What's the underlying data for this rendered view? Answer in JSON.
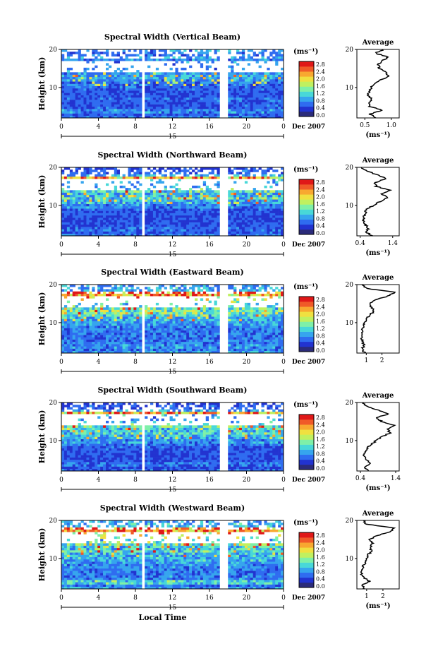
{
  "chart_data": {
    "type": "heatmap",
    "xlabel": "Local Time",
    "date_label": "15",
    "date_suffix": "Dec 2007",
    "x_ticks": [
      "0",
      "4",
      "8",
      "12",
      "16",
      "20",
      "0"
    ],
    "xlim": [
      0,
      24
    ],
    "ylabel": "Height (km)",
    "y_ticks": [
      "20",
      "10"
    ],
    "ylim": [
      2,
      20
    ],
    "colorbar": {
      "unit": "(ms⁻¹)",
      "ticks": [
        "2.8",
        "2.4",
        "2.0",
        "1.6",
        "1.2",
        "0.8",
        "0.4",
        "0.0"
      ],
      "range": [
        0,
        3.0
      ],
      "colors": [
        "#2b2b7a",
        "#2233d0",
        "#2f6cf0",
        "#36a5ee",
        "#48d8d8",
        "#7ef0a8",
        "#c0f060",
        "#f0e040",
        "#f8a830",
        "#f05a28",
        "#e01818"
      ]
    },
    "data_gaps_hours": [
      [
        8.7,
        9.0
      ],
      [
        17.1,
        18.0
      ]
    ],
    "panels": [
      {
        "title": "Spectral Width (Vertical Beam)",
        "avg_title": "Average",
        "avg_xlim": [
          0.35,
          1.15
        ],
        "avg_x_ticks": [
          {
            "label": "0.5",
            "value": 0.5
          },
          {
            "label": "1.0",
            "value": 1.0
          }
        ],
        "avg_xlabel": "(ms⁻¹)",
        "avg_profile": {
          "height_km": [
            2,
            3,
            4,
            5,
            6,
            7,
            8,
            9,
            10,
            11,
            12,
            13,
            14,
            15,
            16,
            17,
            18,
            19,
            20
          ],
          "value_ms": [
            0.72,
            0.6,
            0.82,
            0.6,
            0.58,
            0.62,
            0.55,
            0.58,
            0.62,
            0.7,
            0.8,
            0.95,
            0.9,
            0.78,
            0.75,
            0.82,
            0.95,
            0.7,
            0.85
          ]
        }
      },
      {
        "title": "Spectral Width (Northward Beam)",
        "avg_title": "Average",
        "avg_xlim": [
          0.3,
          1.6
        ],
        "avg_x_ticks": [
          {
            "label": "0.4",
            "value": 0.4
          },
          {
            "label": "1.4",
            "value": 1.4
          }
        ],
        "avg_xlabel": "(ms⁻¹)",
        "avg_profile": {
          "height_km": [
            2,
            3,
            4,
            5,
            6,
            7,
            8,
            9,
            10,
            11,
            12,
            13,
            14,
            15,
            16,
            17,
            18,
            19,
            20
          ],
          "value_ms": [
            0.75,
            0.6,
            0.65,
            0.55,
            0.5,
            0.5,
            0.55,
            0.6,
            0.8,
            1.0,
            1.25,
            1.05,
            1.3,
            0.9,
            0.85,
            1.2,
            0.95,
            0.6,
            0.45
          ]
        }
      },
      {
        "title": "Spectral Width (Eastward Beam)",
        "avg_title": "Average",
        "avg_xlim": [
          0.4,
          3.1
        ],
        "avg_x_ticks": [
          {
            "label": "1",
            "value": 1
          },
          {
            "label": "2",
            "value": 2
          }
        ],
        "avg_xlabel": "",
        "avg_profile": {
          "height_km": [
            2,
            3,
            4,
            5,
            6,
            7,
            8,
            9,
            10,
            11,
            12,
            13,
            14,
            15,
            16,
            17,
            18,
            19,
            20
          ],
          "value_ms": [
            0.9,
            0.75,
            0.85,
            0.75,
            0.7,
            0.7,
            0.75,
            0.8,
            0.9,
            1.0,
            1.2,
            1.5,
            1.35,
            1.2,
            1.6,
            2.4,
            2.8,
            1.0,
            0.8
          ]
        }
      },
      {
        "title": "Spectral Width (Southward Beam)",
        "avg_title": "Average",
        "avg_xlim": [
          0.3,
          1.5
        ],
        "avg_x_ticks": [
          {
            "label": "0.4",
            "value": 0.4
          },
          {
            "label": "1.4",
            "value": 1.4
          }
        ],
        "avg_xlabel": "(ms⁻¹)",
        "avg_profile": {
          "height_km": [
            2,
            3,
            4,
            5,
            6,
            7,
            8,
            9,
            10,
            11,
            12,
            13,
            14,
            15,
            16,
            17,
            18,
            19,
            20
          ],
          "value_ms": [
            0.65,
            0.5,
            0.7,
            0.55,
            0.5,
            0.55,
            0.6,
            0.7,
            0.85,
            1.0,
            1.25,
            1.15,
            1.35,
            1.0,
            0.85,
            1.2,
            0.9,
            0.6,
            0.45
          ]
        }
      },
      {
        "title": "Spectral Width (Westward Beam)",
        "avg_title": "Average",
        "avg_xlim": [
          0.4,
          3.0
        ],
        "avg_x_ticks": [
          {
            "label": "1",
            "value": 1
          },
          {
            "label": "2",
            "value": 2
          }
        ],
        "avg_xlabel": "(ms⁻¹)",
        "avg_profile": {
          "height_km": [
            2,
            3,
            4,
            5,
            6,
            7,
            8,
            9,
            10,
            11,
            12,
            13,
            14,
            15,
            16,
            17,
            18,
            19,
            20
          ],
          "value_ms": [
            0.85,
            0.7,
            1.2,
            0.8,
            0.7,
            0.75,
            0.8,
            0.9,
            1.0,
            1.1,
            1.3,
            1.2,
            1.4,
            1.2,
            1.6,
            2.4,
            2.7,
            1.0,
            0.8
          ]
        }
      }
    ]
  }
}
